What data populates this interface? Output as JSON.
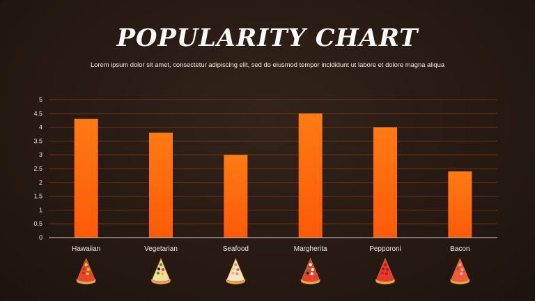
{
  "title": "POPULARITY CHART",
  "subtitle": "Lorem ipsum dolor sit amet, consectetur adipiscing elit, sed do eiusmod tempor incididunt ut labore et dolore magna aliqua",
  "colors": {
    "bar_top": "#ff7a12",
    "bar_bottom": "#ff5a08",
    "grid": "#7a3a12",
    "axis": "#d9d2cc"
  },
  "chart_data": {
    "type": "bar",
    "categories": [
      "Hawaiian",
      "Vegetarian",
      "Seafood",
      "Margherita",
      "Pepporoni",
      "Bacon"
    ],
    "values": [
      4.3,
      3.8,
      3.0,
      4.5,
      4.0,
      2.4
    ],
    "yticks": [
      "0",
      "0.5",
      "1",
      "1.5",
      "2",
      "2.5",
      "3",
      "3.5",
      "4",
      "4.5",
      "5"
    ],
    "ylim": [
      0,
      5
    ],
    "grid": true,
    "xlabel": "",
    "ylabel": ""
  },
  "pizza_icons": [
    "hawaiian-pizza-icon",
    "vegetarian-pizza-icon",
    "seafood-pizza-icon",
    "margherita-pizza-icon",
    "pepperoni-pizza-icon",
    "bacon-pizza-icon"
  ]
}
